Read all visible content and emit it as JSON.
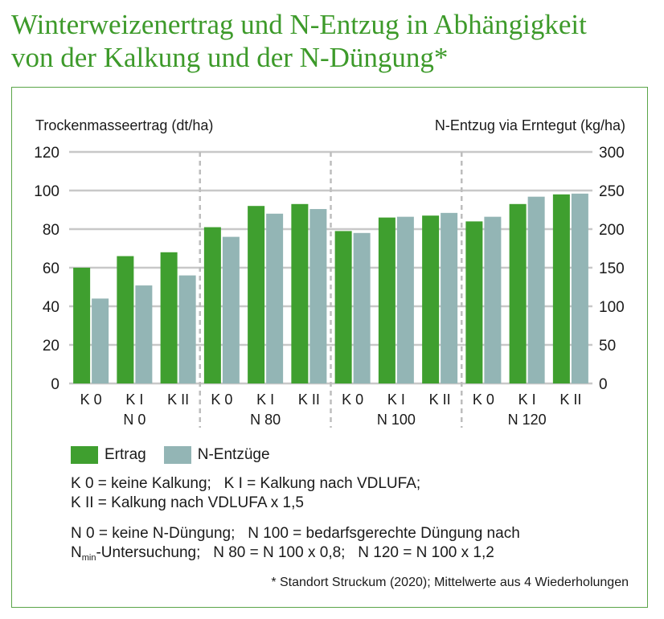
{
  "title": {
    "line1": "Winterweizenertrag und N-Entzug in Abhängigkeit",
    "line2": "von der Kalkung und der N-Düngung*"
  },
  "colors": {
    "ertrag": "#3f9f2f",
    "entzug": "#93b5b5",
    "grid": "#c8c8c8",
    "divider": "#bdbdbd"
  },
  "chart_data": {
    "type": "bar",
    "y_left_label": "Trockenmasseertrag (dt/ha)",
    "y_right_label": "N-Entzug via Erntegut (kg/ha)",
    "y_left_range": [
      0,
      120
    ],
    "y_left_ticks": [
      "0",
      "20",
      "40",
      "60",
      "80",
      "100",
      "120"
    ],
    "y_right_range": [
      0,
      300
    ],
    "y_right_ticks": [
      "0",
      "50",
      "100",
      "150",
      "200",
      "250",
      "300"
    ],
    "grid": true,
    "groups": [
      "N 0",
      "N 80",
      "N 100",
      "N 120"
    ],
    "categories": [
      "K 0",
      "K I",
      "K II"
    ],
    "series": [
      {
        "name": "Ertrag",
        "axis": "left",
        "values": [
          [
            60,
            66,
            68
          ],
          [
            81,
            92,
            93
          ],
          [
            79,
            86,
            87
          ],
          [
            84,
            93,
            98
          ]
        ]
      },
      {
        "name": "N-Entzüge",
        "axis": "right",
        "values": [
          [
            110,
            127,
            140
          ],
          [
            190,
            220,
            226
          ],
          [
            195,
            216,
            221
          ],
          [
            216,
            242,
            246
          ]
        ]
      }
    ]
  },
  "legend": {
    "ertrag": "Ertrag",
    "entzug": "N-Entzüge"
  },
  "notes": {
    "k_line1": "K 0 = keine Kalkung;   K I = Kalkung nach VDLUFA;",
    "k_line2": "K II = Kalkung nach VDLUFA x 1,5",
    "n_line1": "N 0 = keine N-Düngung;   N 100 = bedarfsgerechte Düngung nach",
    "n_line2_pre": "N",
    "n_line2_sub": "min",
    "n_line2_post": "-Untersuchung;   N 80 = N 100 x 0,8;   N 120 = N 100 x 1,2"
  },
  "footnote": "* Standort Struckum (2020); Mittelwerte aus 4 Wiederholungen"
}
